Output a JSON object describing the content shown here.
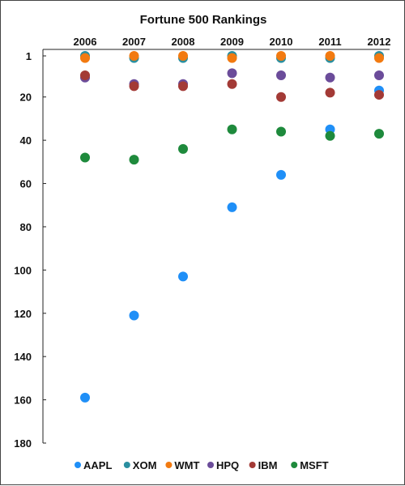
{
  "chart_data": {
    "type": "scatter",
    "title": "Fortune 500 Rankings",
    "xlabel": "",
    "ylabel": "",
    "x": [
      "2006",
      "2007",
      "2008",
      "2009",
      "2010",
      "2011",
      "2012"
    ],
    "x_axis_position": "top",
    "ylim": [
      1,
      180
    ],
    "y_inverted": true,
    "y_ticks": [
      1,
      20,
      40,
      60,
      80,
      100,
      120,
      140,
      160,
      180
    ],
    "grid": false,
    "legend_position": "bottom",
    "series": [
      {
        "name": "AAPL",
        "color": "#1f8ff7",
        "values": [
          159,
          121,
          103,
          71,
          56,
          35,
          17
        ]
      },
      {
        "name": "XOM",
        "color": "#2a8fa0",
        "values": [
          1,
          2,
          2,
          1,
          2,
          2,
          1
        ]
      },
      {
        "name": "WMT",
        "color": "#f27a10",
        "values": [
          2,
          1,
          1,
          2,
          1,
          1,
          2
        ]
      },
      {
        "name": "HPQ",
        "color": "#6b4c9a",
        "values": [
          11,
          14,
          14,
          9,
          10,
          11,
          10
        ]
      },
      {
        "name": "IBM",
        "color": "#a33a36",
        "values": [
          10,
          15,
          15,
          14,
          20,
          18,
          19
        ]
      },
      {
        "name": "MSFT",
        "color": "#1e8a3c",
        "values": [
          48,
          49,
          44,
          35,
          36,
          38,
          37
        ]
      }
    ]
  }
}
